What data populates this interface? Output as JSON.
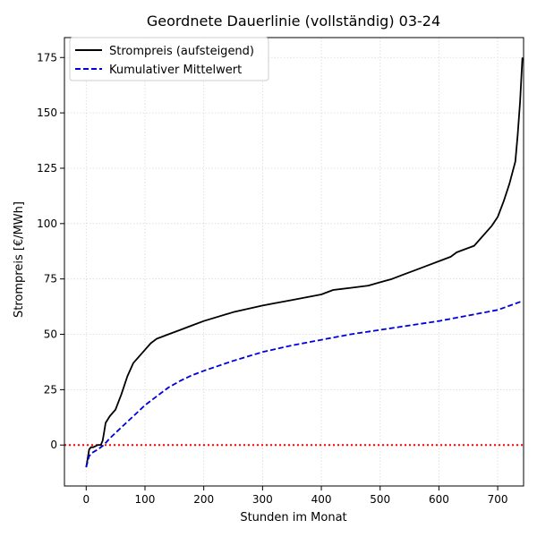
{
  "chart_data": {
    "type": "line",
    "title": "Geordnete Dauerlinie (vollständig) 03-24",
    "xlabel": "Stunden im Monat",
    "ylabel": "Strompreis [€/MWh]",
    "xlim": [
      -37,
      744
    ],
    "ylim": [
      -18.5,
      184
    ],
    "xticks": [
      0,
      100,
      200,
      300,
      400,
      500,
      600,
      700
    ],
    "yticks": [
      0,
      25,
      50,
      75,
      100,
      125,
      150,
      175
    ],
    "grid": true,
    "legend_position": "top-left",
    "reference_line": {
      "y": 0,
      "color": "#ff0000",
      "style": "dotted"
    },
    "series": [
      {
        "name": "Strompreis (aufsteigend)",
        "color": "#000000",
        "style": "solid",
        "x": [
          0,
          2,
          5,
          8,
          12,
          20,
          25,
          28,
          30,
          33,
          40,
          50,
          60,
          70,
          80,
          90,
          100,
          110,
          120,
          140,
          160,
          180,
          200,
          250,
          300,
          320,
          350,
          380,
          400,
          420,
          450,
          480,
          500,
          520,
          540,
          560,
          580,
          600,
          620,
          630,
          640,
          660,
          670,
          680,
          690,
          700,
          710,
          720,
          730,
          734,
          738,
          740,
          742
        ],
        "y": [
          -10,
          -7,
          -2,
          -1,
          -1,
          0,
          0,
          2,
          5,
          10,
          13,
          16,
          23,
          31,
          37,
          40,
          43,
          46,
          48,
          50,
          52,
          54,
          56,
          60,
          63,
          64,
          65.5,
          67,
          68,
          70,
          71,
          72,
          73.5,
          75,
          77,
          79,
          81,
          83,
          85,
          87,
          88,
          90,
          93,
          96,
          99,
          103,
          110,
          118,
          128,
          140,
          155,
          165,
          175
        ]
      },
      {
        "name": "Kumulativer Mittelwert",
        "color": "#0000dd",
        "style": "dashed",
        "x": [
          0,
          5,
          10,
          20,
          30,
          40,
          60,
          80,
          100,
          120,
          140,
          160,
          180,
          200,
          250,
          300,
          350,
          400,
          450,
          500,
          550,
          600,
          650,
          700,
          742
        ],
        "y": [
          -10,
          -5,
          -3.5,
          -2,
          0,
          3,
          8,
          13,
          18,
          22,
          26,
          29,
          31.5,
          33.5,
          38,
          42,
          45,
          47.5,
          50,
          52,
          54,
          56,
          58.5,
          61,
          65
        ]
      }
    ]
  }
}
